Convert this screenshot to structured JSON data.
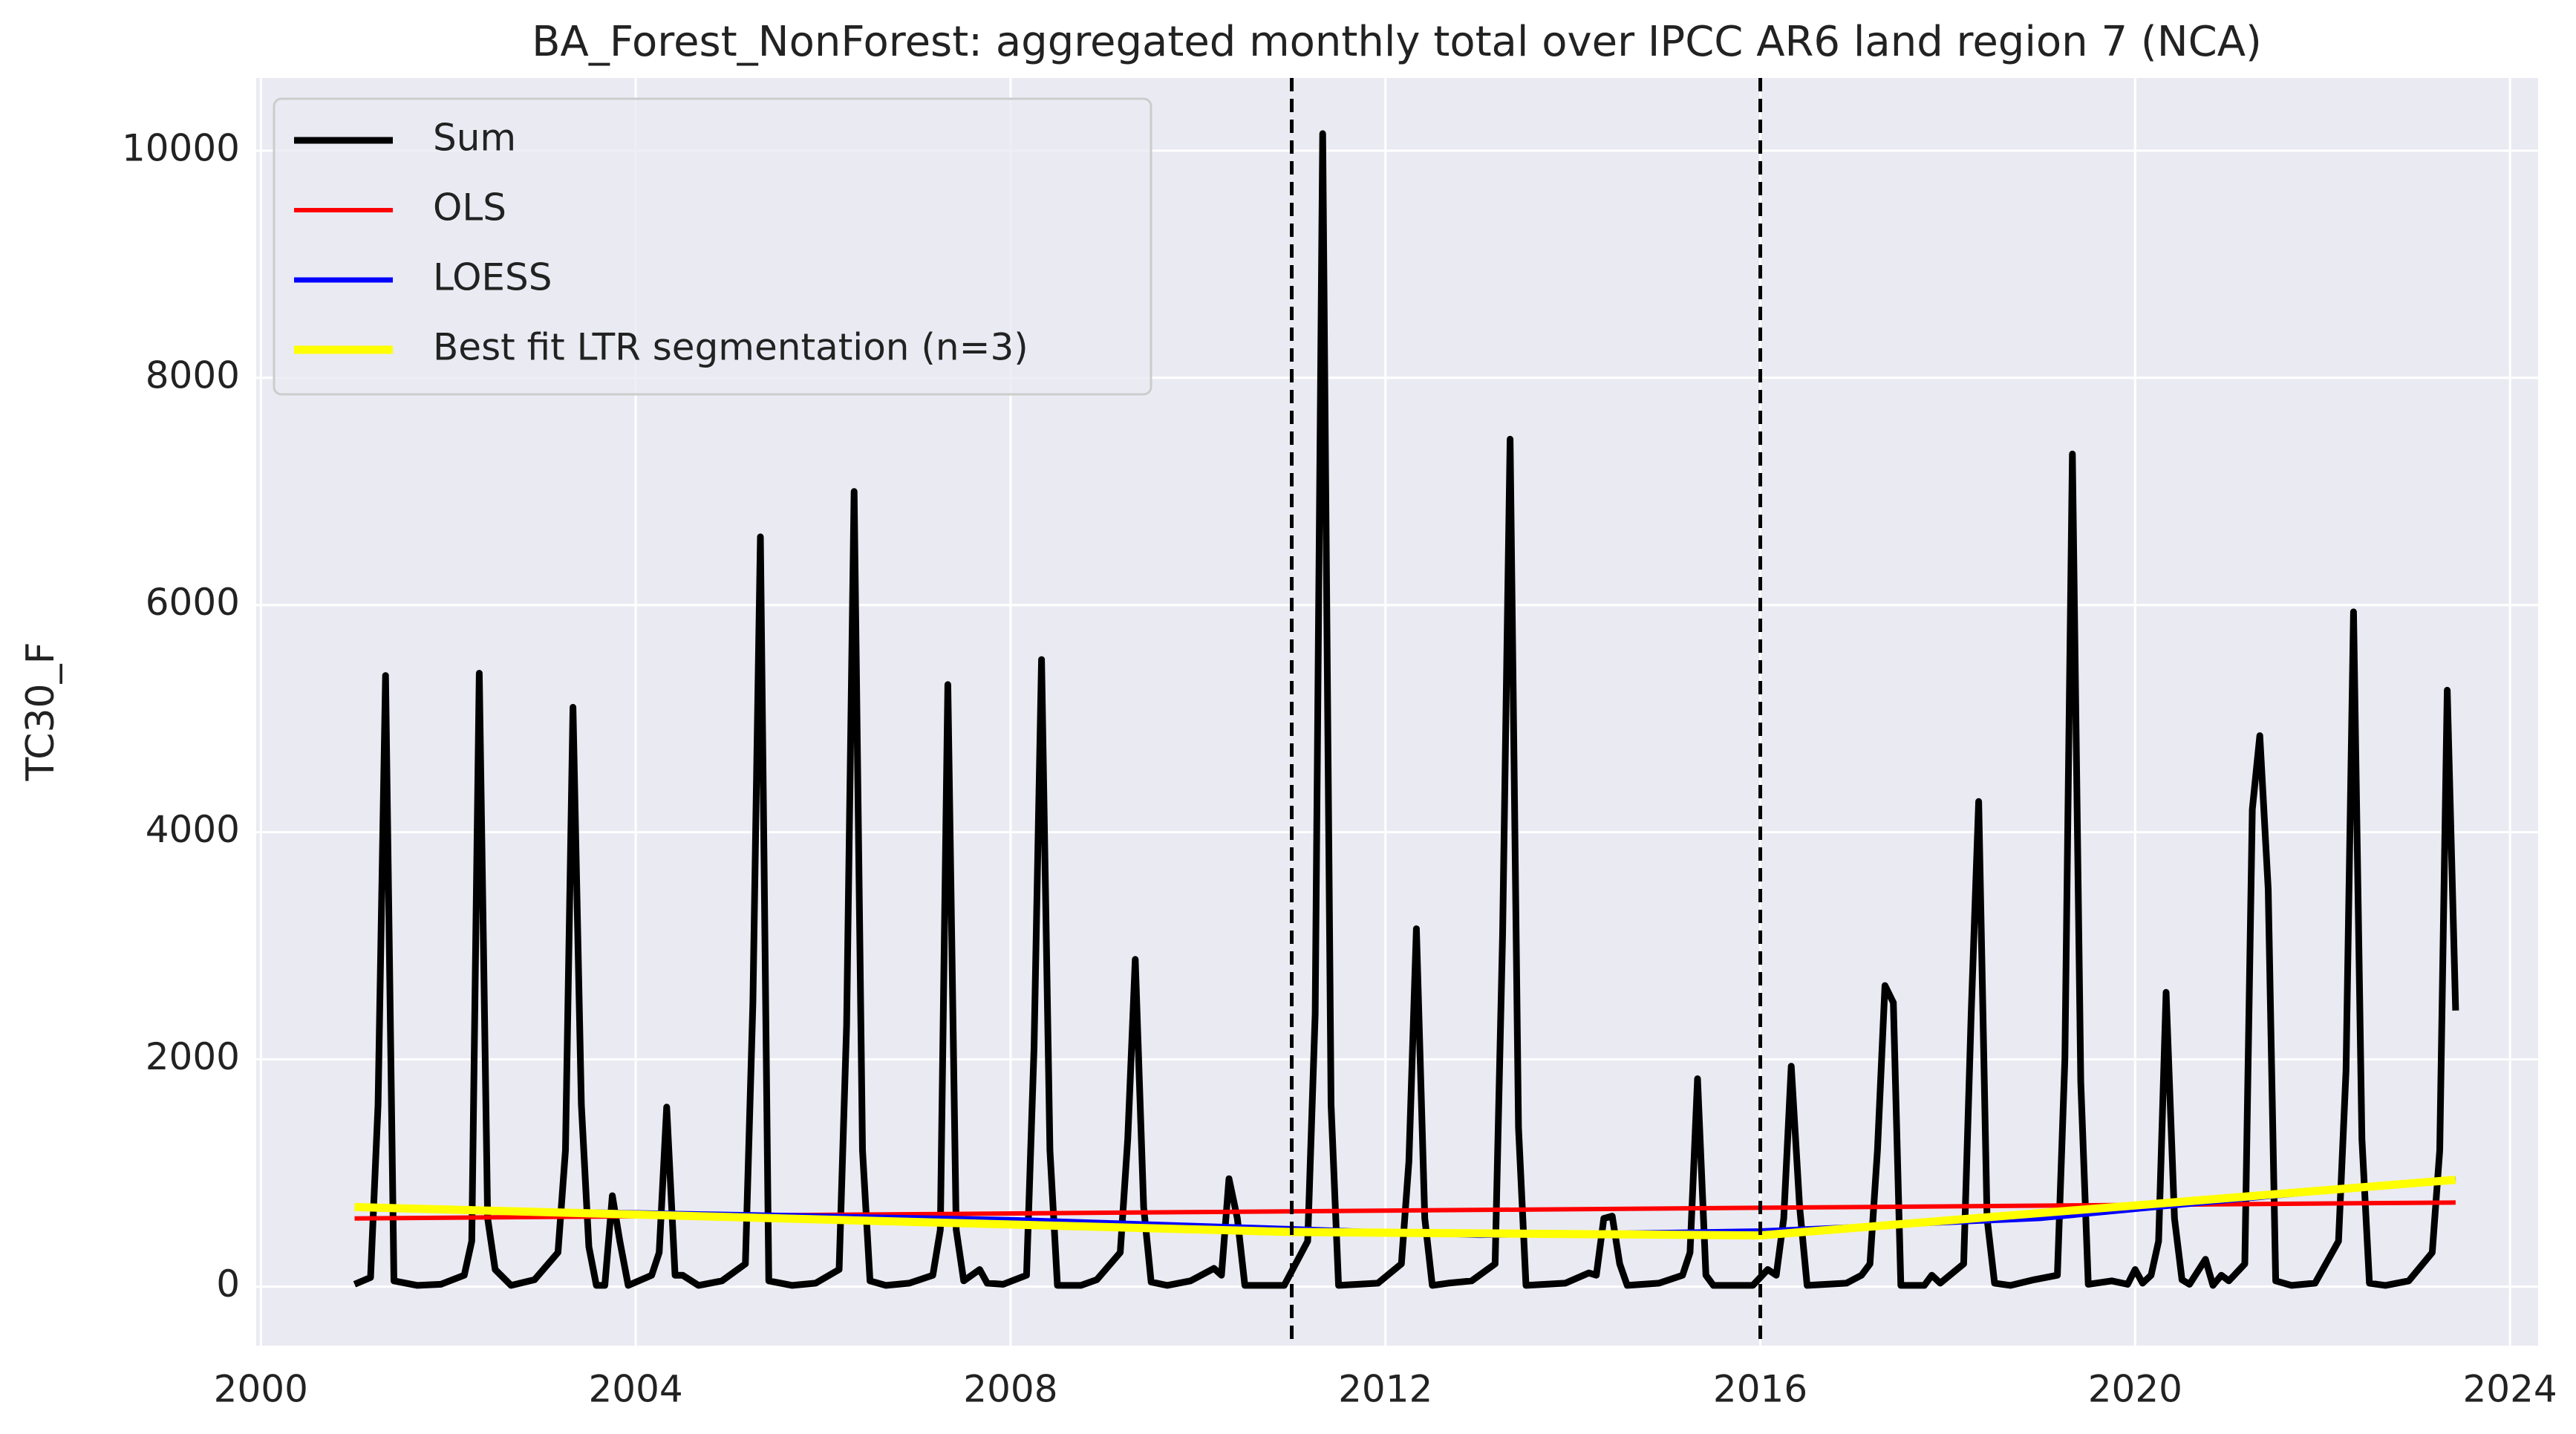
{
  "chart_data": {
    "type": "line",
    "title": "BA_Forest_NonForest: aggregated monthly total over IPCC AR6 land region 7 (NCA)",
    "ylabel": "TC30_F",
    "xlim": [
      1999.95,
      2024.3
    ],
    "xticks": [
      2000,
      2004,
      2008,
      2012,
      2016,
      2020,
      2024
    ],
    "ylim": [
      -520,
      10640
    ],
    "yticks": [
      0,
      2000,
      4000,
      6000,
      8000,
      10000
    ],
    "grid": true,
    "legend_loc": "upper left",
    "vlines": [
      2011,
      2016
    ],
    "series": [
      {
        "name": "Sum",
        "color": "#000000",
        "x": [
          2001.0,
          2001.17,
          2001.25,
          2001.33,
          2001.42,
          2001.67,
          2001.92,
          2002.17,
          2002.25,
          2002.33,
          2002.42,
          2002.5,
          2002.67,
          2002.92,
          2003.17,
          2003.25,
          2003.33,
          2003.42,
          2003.5,
          2003.58,
          2003.67,
          2003.75,
          2003.83,
          2003.92,
          2004.17,
          2004.25,
          2004.33,
          2004.42,
          2004.5,
          2004.67,
          2004.92,
          2005.17,
          2005.25,
          2005.33,
          2005.42,
          2005.67,
          2005.92,
          2006.17,
          2006.25,
          2006.33,
          2006.42,
          2006.5,
          2006.67,
          2006.92,
          2007.17,
          2007.25,
          2007.33,
          2007.42,
          2007.5,
          2007.67,
          2007.75,
          2007.92,
          2008.17,
          2008.25,
          2008.33,
          2008.42,
          2008.5,
          2008.75,
          2008.92,
          2009.17,
          2009.25,
          2009.33,
          2009.42,
          2009.5,
          2009.67,
          2009.92,
          2010.17,
          2010.25,
          2010.33,
          2010.42,
          2010.5,
          2010.92,
          2011.17,
          2011.25,
          2011.33,
          2011.42,
          2011.5,
          2011.92,
          2012.17,
          2012.25,
          2012.33,
          2012.42,
          2012.5,
          2012.67,
          2012.92,
          2013.17,
          2013.25,
          2013.33,
          2013.42,
          2013.5,
          2013.92,
          2014.17,
          2014.25,
          2014.33,
          2014.42,
          2014.5,
          2014.58,
          2014.92,
          2015.17,
          2015.25,
          2015.33,
          2015.42,
          2015.5,
          2015.92,
          2016.08,
          2016.17,
          2016.25,
          2016.33,
          2016.42,
          2016.5,
          2016.92,
          2017.08,
          2017.17,
          2017.25,
          2017.33,
          2017.42,
          2017.5,
          2017.75,
          2017.83,
          2017.92,
          2018.17,
          2018.25,
          2018.33,
          2018.42,
          2018.5,
          2018.67,
          2018.92,
          2019.17,
          2019.25,
          2019.33,
          2019.42,
          2019.5,
          2019.75,
          2019.92,
          2020.0,
          2020.08,
          2020.17,
          2020.25,
          2020.33,
          2020.42,
          2020.5,
          2020.58,
          2020.75,
          2020.83,
          2020.92,
          2021.0,
          2021.17,
          2021.25,
          2021.33,
          2021.42,
          2021.5,
          2021.67,
          2021.92,
          2022.17,
          2022.25,
          2022.33,
          2022.42,
          2022.5,
          2022.67,
          2022.92,
          2023.17,
          2023.25,
          2023.33,
          2023.42
        ],
        "values": [
          20,
          80,
          1600,
          5380,
          50,
          10,
          20,
          100,
          400,
          5400,
          600,
          150,
          10,
          60,
          300,
          1200,
          5100,
          1600,
          350,
          10,
          10,
          800,
          400,
          10,
          100,
          300,
          1580,
          100,
          100,
          10,
          50,
          200,
          2500,
          6600,
          50,
          10,
          30,
          150,
          2300,
          7000,
          1200,
          50,
          10,
          30,
          100,
          500,
          5300,
          500,
          50,
          150,
          30,
          20,
          100,
          2100,
          5520,
          1200,
          10,
          10,
          60,
          300,
          1300,
          2880,
          700,
          40,
          10,
          50,
          160,
          100,
          950,
          600,
          10,
          10,
          400,
          2400,
          10150,
          1600,
          10,
          30,
          200,
          1100,
          3150,
          600,
          10,
          30,
          50,
          200,
          3100,
          7460,
          1400,
          10,
          30,
          120,
          100,
          600,
          620,
          200,
          10,
          30,
          100,
          300,
          1830,
          100,
          10,
          10,
          150,
          100,
          600,
          1940,
          700,
          10,
          30,
          100,
          200,
          1200,
          2650,
          2500,
          10,
          10,
          100,
          30,
          200,
          2400,
          4270,
          600,
          30,
          10,
          60,
          100,
          2000,
          7330,
          1800,
          20,
          50,
          20,
          150,
          30,
          100,
          400,
          2590,
          600,
          60,
          20,
          240,
          10,
          100,
          50,
          200,
          4200,
          4850,
          3500,
          50,
          10,
          30,
          400,
          1900,
          5940,
          1300,
          30,
          10,
          50,
          300,
          1200,
          5250,
          2430
        ]
      },
      {
        "name": "OLS",
        "color": "#ff0000",
        "x": [
          2001.0,
          2023.42
        ],
        "values": [
          600,
          740
        ]
      },
      {
        "name": "LOESS",
        "color": "#0000ff",
        "x": [
          2001.0,
          2004,
          2008,
          2011,
          2013,
          2016,
          2019,
          2023.42
        ],
        "values": [
          690,
          650,
          590,
          510,
          450,
          490,
          600,
          950
        ]
      },
      {
        "name": "Best fit LTR segmentation (n=3)",
        "color": "#ffff00",
        "x": [
          2001.0,
          2011,
          2016,
          2023.42
        ],
        "values": [
          700,
          480,
          450,
          940
        ]
      }
    ]
  }
}
